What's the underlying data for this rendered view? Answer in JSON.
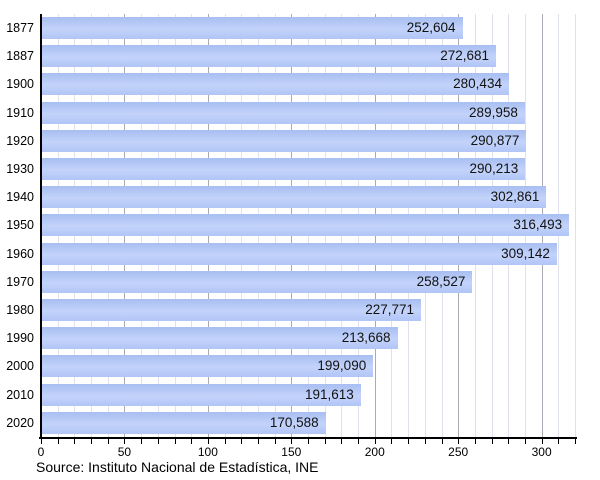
{
  "chart_data": {
    "type": "bar",
    "orientation": "horizontal",
    "title": "",
    "categories": [
      "1877",
      "1887",
      "1900",
      "1910",
      "1920",
      "1930",
      "1940",
      "1950",
      "1960",
      "1970",
      "1980",
      "1990",
      "2000",
      "2010",
      "2020"
    ],
    "values": [
      252604,
      272681,
      280434,
      289958,
      290877,
      290213,
      302861,
      316493,
      309142,
      258527,
      227771,
      213668,
      199090,
      191613,
      170588
    ],
    "value_labels": [
      "252,604",
      "272,681",
      "280,434",
      "289,958",
      "290,877",
      "290,213",
      "302,861",
      "316,493",
      "309,142",
      "258,527",
      "227,771",
      "213,668",
      "199,090",
      "191,613",
      "170,588"
    ],
    "x_tick_labels": [
      "0",
      "50",
      "100",
      "150",
      "200",
      "250",
      "300"
    ],
    "x_ticks": [
      0,
      50,
      100,
      150,
      200,
      250,
      300
    ],
    "x_minor_tick_step": 10,
    "xlim": [
      0,
      320
    ],
    "x_unit_divisor": 1000,
    "grid": "vertical",
    "legend": "none",
    "source_note": "Source: Instituto Nacional de Estadística, INE"
  },
  "colors": {
    "bar_top": "#a8bef2",
    "bar_mid": "#c3d3fa",
    "bar_bottom": "#b1c5f6",
    "grid_minor": "#dde2ec",
    "grid_major": "#a9abb3",
    "axis": "#000000",
    "value_text": "#111111"
  }
}
